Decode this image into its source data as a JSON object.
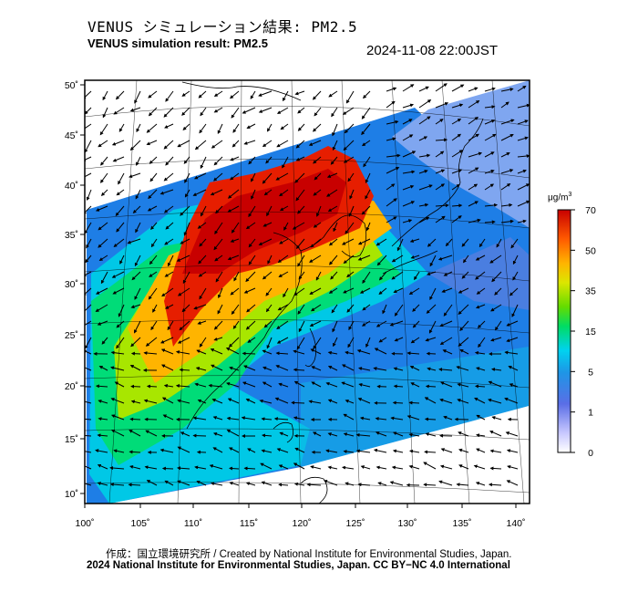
{
  "header": {
    "title_jp": "VENUS シミュレーション結果: PM2.5",
    "title_en": "VENUS simulation result: PM2.5",
    "timestamp": "2024-11-08 22:00JST"
  },
  "map": {
    "lon_ticks": [
      "100˚",
      "105˚",
      "110˚",
      "115˚",
      "120˚",
      "125˚",
      "130˚",
      "135˚",
      "140˚"
    ],
    "lat_ticks": [
      "10˚",
      "15˚",
      "20˚",
      "25˚",
      "30˚",
      "35˚",
      "40˚",
      "45˚",
      "50˚"
    ]
  },
  "colorbar": {
    "unit": "μg/m",
    "unit_sup": "3",
    "ticks": [
      "0",
      "1",
      "5",
      "15",
      "35",
      "50",
      "70"
    ],
    "colors": [
      "#ffffff",
      "#c8c8ff",
      "#8080f0",
      "#3a6ce0",
      "#1e96e6",
      "#00c8f0",
      "#00e6c8",
      "#00dc60",
      "#50dc00",
      "#b4e600",
      "#f0dc00",
      "#ffa000",
      "#ff5a00",
      "#e61e00",
      "#b40000"
    ]
  },
  "footer": {
    "credit": "作成：国立環境研究所 / Created by National Institute for Environmental Studies, Japan.",
    "license": "2024 National Institute for Environmental Studies, Japan. CC BY−NC 4.0 International"
  }
}
